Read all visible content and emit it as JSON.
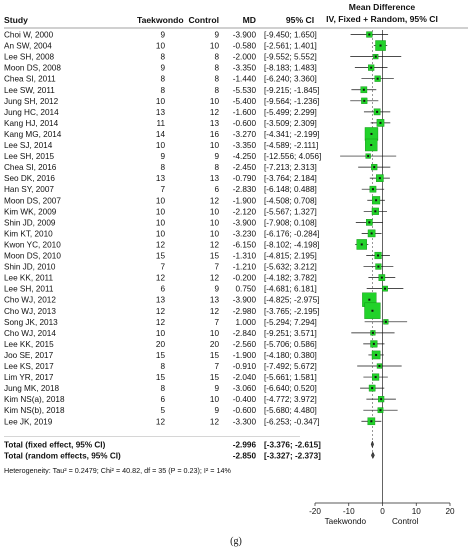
{
  "figure_label": "(g)",
  "chart_data": {
    "type": "forest",
    "columns": {
      "study": "Study",
      "taekwondo": "Taekwondo",
      "control": "Control",
      "md": "MD",
      "ci": "95% CI"
    },
    "plot_title": [
      "Mean Difference",
      "IV, Fixed + Random, 95% CI"
    ],
    "studies": [
      {
        "name": "Choi W, 2000",
        "tkd": "9",
        "ctl": "9",
        "md": -3.9,
        "lo": -9.45,
        "hi": 1.65,
        "md_text": "-3.900",
        "ci_text": "[-9.450; 1.650]",
        "w": 0.7
      },
      {
        "name": "An SW, 2004",
        "tkd": "10",
        "ctl": "10",
        "md": -0.58,
        "lo": -2.561,
        "hi": 1.401,
        "md_text": "-0.580",
        "ci_text": "[-2.561; 1.401]",
        "w": 1.6
      },
      {
        "name": "Lee SH, 2008",
        "tkd": "8",
        "ctl": "8",
        "md": -2.0,
        "lo": -9.552,
        "hi": 5.552,
        "md_text": "-2.000",
        "ci_text": "[-9.552; 5.552]",
        "w": 0.5
      },
      {
        "name": "Moon DS, 2008",
        "tkd": "9",
        "ctl": "8",
        "md": -3.35,
        "lo": -8.183,
        "hi": 1.483,
        "md_text": "-3.350",
        "ci_text": "[-8.183; 1.483]",
        "w": 0.7
      },
      {
        "name": "Chea SI, 2011",
        "tkd": "8",
        "ctl": "8",
        "md": -1.44,
        "lo": -6.24,
        "hi": 3.36,
        "md_text": "-1.440",
        "ci_text": "[-6.240; 3.360]",
        "w": 0.7
      },
      {
        "name": "Lee SW, 2011",
        "tkd": "8",
        "ctl": "8",
        "md": -5.53,
        "lo": -9.215,
        "hi": -1.845,
        "md_text": "-5.530",
        "ci_text": "[-9.215; -1.845]",
        "w": 0.8
      },
      {
        "name": "Jung SH, 2012",
        "tkd": "10",
        "ctl": "10",
        "md": -5.4,
        "lo": -9.564,
        "hi": -1.236,
        "md_text": "-5.400",
        "ci_text": "[-9.564; -1.236]",
        "w": 0.7
      },
      {
        "name": "Jung HC, 2014",
        "tkd": "13",
        "ctl": "12",
        "md": -1.6,
        "lo": -5.499,
        "hi": 2.299,
        "md_text": "-1.600",
        "ci_text": "[-5.499; 2.299]",
        "w": 0.8
      },
      {
        "name": "Kang HJ, 2014",
        "tkd": "11",
        "ctl": "13",
        "md": -0.6,
        "lo": -3.509,
        "hi": 2.309,
        "md_text": "-0.600",
        "ci_text": "[-3.509; 2.309]",
        "w": 1.0
      },
      {
        "name": "Kang MG, 2014",
        "tkd": "14",
        "ctl": "16",
        "md": -3.27,
        "lo": -4.341,
        "hi": -2.199,
        "md_text": "-3.270",
        "ci_text": "[-4.341; -2.199]",
        "w": 2.2
      },
      {
        "name": "Lee SJ, 2014",
        "tkd": "10",
        "ctl": "10",
        "md": -3.35,
        "lo": -4.589,
        "hi": -2.111,
        "md_text": "-3.350",
        "ci_text": "[-4.589; -2.111]",
        "w": 2.0
      },
      {
        "name": "Lee SH, 2015",
        "tkd": "9",
        "ctl": "9",
        "md": -4.25,
        "lo": -12.556,
        "hi": 4.056,
        "md_text": "-4.250",
        "ci_text": "[-12.556; 4.056]",
        "w": 0.5
      },
      {
        "name": "Chea SI, 2016",
        "tkd": "8",
        "ctl": "8",
        "md": -2.45,
        "lo": -7.213,
        "hi": 2.313,
        "md_text": "-2.450",
        "ci_text": "[-7.213; 2.313]",
        "w": 0.7
      },
      {
        "name": "Seo DK, 2016",
        "tkd": "13",
        "ctl": "13",
        "md": -0.79,
        "lo": -3.764,
        "hi": 2.184,
        "md_text": "-0.790",
        "ci_text": "[-3.764; 2.184]",
        "w": 1.0
      },
      {
        "name": "Han SY, 2007",
        "tkd": "7",
        "ctl": "6",
        "md": -2.83,
        "lo": -6.148,
        "hi": 0.488,
        "md_text": "-2.830",
        "ci_text": "[-6.148; 0.488]",
        "w": 0.8
      },
      {
        "name": "Moon DS, 2007",
        "tkd": "10",
        "ctl": "12",
        "md": -1.9,
        "lo": -4.508,
        "hi": 0.708,
        "md_text": "-1.900",
        "ci_text": "[-4.508; 0.708]",
        "w": 1.1
      },
      {
        "name": "Kim WK, 2009",
        "tkd": "10",
        "ctl": "10",
        "md": -2.12,
        "lo": -5.567,
        "hi": 1.327,
        "md_text": "-2.120",
        "ci_text": "[-5.567; 1.327]",
        "w": 0.9
      },
      {
        "name": "Shin JD, 2009",
        "tkd": "10",
        "ctl": "10",
        "md": -3.9,
        "lo": -7.908,
        "hi": 0.108,
        "md_text": "-3.900",
        "ci_text": "[-7.908; 0.108]",
        "w": 0.8
      },
      {
        "name": "Kim KT, 2010",
        "tkd": "10",
        "ctl": "10",
        "md": -3.23,
        "lo": -6.176,
        "hi": -0.284,
        "md_text": "-3.230",
        "ci_text": "[-6.176; -0.284]",
        "w": 1.0
      },
      {
        "name": "Kwon YC, 2010",
        "tkd": "12",
        "ctl": "12",
        "md": -6.15,
        "lo": -8.102,
        "hi": -4.198,
        "md_text": "-6.150",
        "ci_text": "[-8.102; -4.198]",
        "w": 1.6
      },
      {
        "name": "Moon DS, 2010",
        "tkd": "15",
        "ctl": "15",
        "md": -1.31,
        "lo": -4.815,
        "hi": 2.195,
        "md_text": "-1.310",
        "ci_text": "[-4.815; 2.195]",
        "w": 0.9
      },
      {
        "name": "Shin JD, 2010",
        "tkd": "7",
        "ctl": "7",
        "md": -1.21,
        "lo": -5.632,
        "hi": 3.212,
        "md_text": "-1.210",
        "ci_text": "[-5.632; 3.212]",
        "w": 0.7
      },
      {
        "name": "Lee KK, 2011",
        "tkd": "12",
        "ctl": "12",
        "md": -0.2,
        "lo": -4.182,
        "hi": 3.782,
        "md_text": "-0.200",
        "ci_text": "[-4.182; 3.782]",
        "w": 0.8
      },
      {
        "name": "Lee SH, 2011",
        "tkd": "6",
        "ctl": "9",
        "md": 0.75,
        "lo": -4.681,
        "hi": 6.181,
        "md_text": "0.750",
        "ci_text": "[-4.681; 6.181]",
        "w": 0.6
      },
      {
        "name": "Cho WJ, 2012",
        "tkd": "13",
        "ctl": "13",
        "md": -3.9,
        "lo": -4.825,
        "hi": -2.975,
        "md_text": "-3.900",
        "ci_text": "[-4.825; -2.975]",
        "w": 2.4
      },
      {
        "name": "Cho WJ, 2013",
        "tkd": "12",
        "ctl": "12",
        "md": -2.98,
        "lo": -3.765,
        "hi": -2.195,
        "md_text": "-2.980",
        "ci_text": "[-3.765; -2.195]",
        "w": 2.8
      },
      {
        "name": "Song JK, 2013",
        "tkd": "12",
        "ctl": "7",
        "md": 1.0,
        "lo": -5.294,
        "hi": 7.294,
        "md_text": "1.000",
        "ci_text": "[-5.294; 7.294]",
        "w": 0.5
      },
      {
        "name": "Cho WJ, 2014",
        "tkd": "10",
        "ctl": "10",
        "md": -2.84,
        "lo": -9.251,
        "hi": 3.571,
        "md_text": "-2.840",
        "ci_text": "[-9.251; 3.571]",
        "w": 0.5
      },
      {
        "name": "Lee KK, 2015",
        "tkd": "20",
        "ctl": "20",
        "md": -2.56,
        "lo": -5.706,
        "hi": 0.586,
        "md_text": "-2.560",
        "ci_text": "[-5.706; 0.586]",
        "w": 0.9
      },
      {
        "name": "Joo SE, 2017",
        "tkd": "15",
        "ctl": "15",
        "md": -1.9,
        "lo": -4.18,
        "hi": 0.38,
        "md_text": "-1.900",
        "ci_text": "[-4.180; 0.380]",
        "w": 1.2
      },
      {
        "name": "Lee KS, 2017",
        "tkd": "8",
        "ctl": "7",
        "md": -0.91,
        "lo": -7.492,
        "hi": 5.672,
        "md_text": "-0.910",
        "ci_text": "[-7.492; 5.672]",
        "w": 0.5
      },
      {
        "name": "Lim YR, 2017",
        "tkd": "15",
        "ctl": "15",
        "md": -2.04,
        "lo": -5.661,
        "hi": 1.581,
        "md_text": "-2.040",
        "ci_text": "[-5.661; 1.581]",
        "w": 0.9
      },
      {
        "name": "Jung MK, 2018",
        "tkd": "8",
        "ctl": "9",
        "md": -3.06,
        "lo": -6.64,
        "hi": 0.52,
        "md_text": "-3.060",
        "ci_text": "[-6.640; 0.520]",
        "w": 0.8
      },
      {
        "name": "Kim NS(a), 2018",
        "tkd": "6",
        "ctl": "10",
        "md": -0.4,
        "lo": -4.772,
        "hi": 3.972,
        "md_text": "-0.400",
        "ci_text": "[-4.772; 3.972]",
        "w": 0.7
      },
      {
        "name": "Kim NS(b), 2018",
        "tkd": "5",
        "ctl": "9",
        "md": -0.6,
        "lo": -5.68,
        "hi": 4.48,
        "md_text": "-0.600",
        "ci_text": "[-5.680; 4.480]",
        "w": 0.6
      },
      {
        "name": "Lee JK, 2019",
        "tkd": "12",
        "ctl": "12",
        "md": -3.3,
        "lo": -6.253,
        "hi": -0.347,
        "md_text": "-3.300",
        "ci_text": "[-6.253; -0.347]",
        "w": 1.0
      }
    ],
    "pooled": [
      {
        "name": "Total (fixed effect, 95% CI)",
        "md": -2.996,
        "lo": -3.376,
        "hi": -2.615,
        "md_text": "-2.996",
        "ci_text": "[-3.376; -2.615]"
      },
      {
        "name": "Total (random effects, 95% CI)",
        "md": -2.85,
        "lo": -3.327,
        "hi": -2.373,
        "md_text": "-2.850",
        "ci_text": "[-3.327; -2.373]"
      }
    ],
    "heterogeneity": "Heterogeneity: Tau² = 0.2479; Chi² = 40.82, df = 35 (P = 0.23); I² = 14%",
    "x_axis": {
      "range": [
        -20,
        20
      ],
      "ticks": [
        "-20",
        "-10",
        "0",
        "10",
        "20"
      ]
    },
    "x_labels": {
      "left": "Taekwondo",
      "right": "Control"
    },
    "colors": {
      "square": "#22d22a",
      "square_edge": "#0d8a12",
      "line": "#111111",
      "ref": "#222222",
      "pooled_ref": "#555555"
    }
  }
}
